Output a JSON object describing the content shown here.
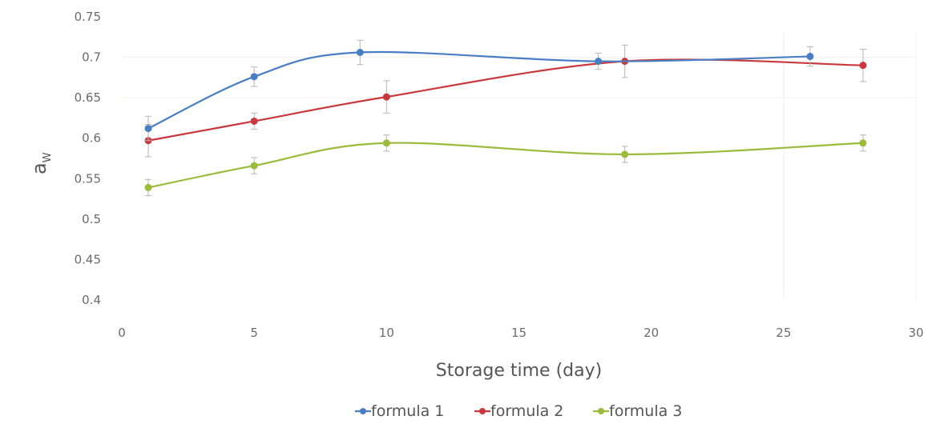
{
  "chart_data": {
    "type": "line",
    "title": "",
    "xlabel": "Storage time (day)",
    "ylabel": {
      "main": "a",
      "sub": "W"
    },
    "xlim": [
      0,
      30
    ],
    "ylim": [
      0.4,
      0.75
    ],
    "x_ticks": [
      "0",
      "5",
      "10",
      "15",
      "20",
      "25",
      "30"
    ],
    "y_ticks": [
      "0.4",
      "0.45",
      "0.5",
      "0.55",
      "0.6",
      "0.65",
      "0.7",
      "0.75"
    ],
    "grid": false,
    "smooth": true,
    "legend_position": "bottom",
    "series": [
      {
        "name": "formula 1",
        "color": "#4a7ec4",
        "x": [
          1,
          5,
          9,
          18,
          26
        ],
        "y": [
          0.612,
          0.676,
          0.706,
          0.695,
          0.701
        ],
        "error": [
          0.015,
          0.012,
          0.015,
          0.01,
          0.012
        ]
      },
      {
        "name": "formula 2",
        "color": "#c8383c",
        "x": [
          1,
          5,
          10,
          19,
          28
        ],
        "y": [
          0.597,
          0.621,
          0.651,
          0.695,
          0.69
        ],
        "error": [
          0.02,
          0.01,
          0.02,
          0.02,
          0.02
        ]
      },
      {
        "name": "formula 3",
        "color": "#9bbb3c",
        "x": [
          1,
          5,
          10,
          19,
          28
        ],
        "y": [
          0.539,
          0.566,
          0.594,
          0.58,
          0.594
        ],
        "error": [
          0.01,
          0.01,
          0.01,
          0.01,
          0.01
        ]
      }
    ]
  }
}
